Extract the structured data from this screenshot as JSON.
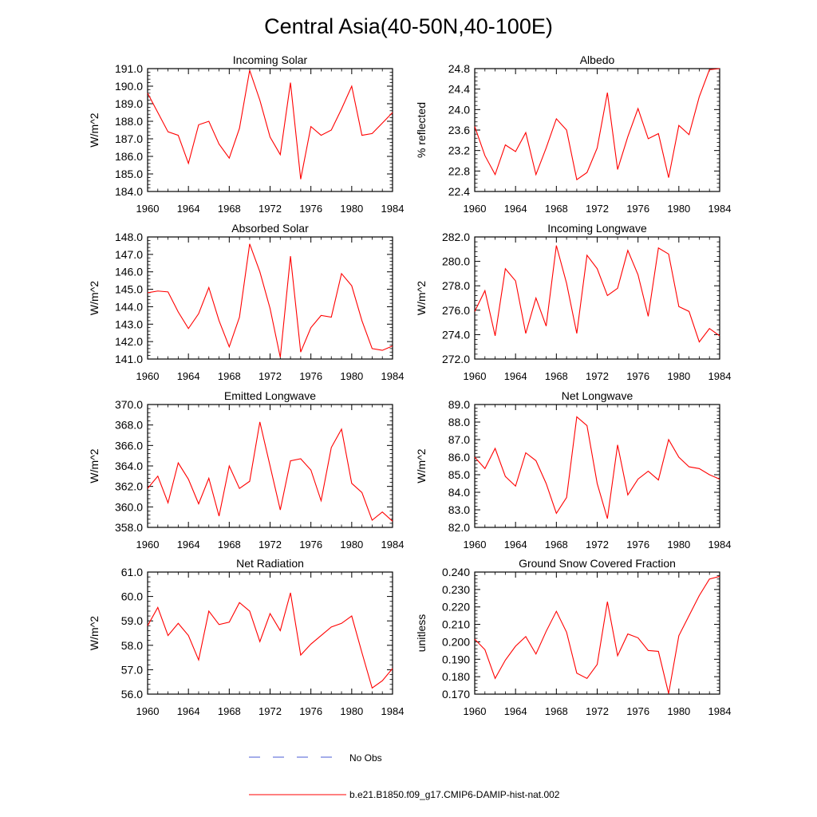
{
  "title": "Central Asia(40-50N,40-100E)",
  "colors": {
    "series": "#ff0000",
    "obs": "#4a5bd6",
    "axis": "#000000"
  },
  "legend": {
    "obs_label": "No Obs",
    "model_label": "b.e21.B1850.f09_g17.CMIP6-DAMIP-hist-nat.002"
  },
  "chart_data": [
    {
      "type": "line",
      "title": "Incoming Solar",
      "ylabel": "W/m^2",
      "xlim": [
        1960,
        1984
      ],
      "ylim": [
        184.0,
        191.0
      ],
      "xticks": [
        1960,
        1964,
        1968,
        1972,
        1976,
        1980,
        1984
      ],
      "yticks": [
        "184.0",
        "185.0",
        "186.0",
        "187.0",
        "188.0",
        "189.0",
        "190.0",
        "191.0"
      ],
      "x": [
        1960,
        1961,
        1962,
        1963,
        1964,
        1965,
        1966,
        1967,
        1968,
        1969,
        1970,
        1971,
        1972,
        1973,
        1974,
        1975,
        1976,
        1977,
        1978,
        1979,
        1980,
        1981,
        1982,
        1983,
        1984
      ],
      "series": [
        {
          "values": [
            189.6,
            188.5,
            187.4,
            187.2,
            185.6,
            187.8,
            188.0,
            186.7,
            185.9,
            187.6,
            190.9,
            189.2,
            187.1,
            186.1,
            190.2,
            184.7,
            187.7,
            187.2,
            187.5,
            188.7,
            190.0,
            187.2,
            187.3,
            187.9,
            188.5
          ]
        }
      ]
    },
    {
      "type": "line",
      "title": "Albedo",
      "ylabel": "% reflected",
      "xlim": [
        1960,
        1984
      ],
      "ylim": [
        22.4,
        24.8
      ],
      "xticks": [
        1960,
        1964,
        1968,
        1972,
        1976,
        1980,
        1984
      ],
      "yticks": [
        "22.4",
        "22.8",
        "23.2",
        "23.6",
        "24.0",
        "24.4",
        "24.8"
      ],
      "x": [
        1960,
        1961,
        1962,
        1963,
        1964,
        1965,
        1966,
        1967,
        1968,
        1969,
        1970,
        1971,
        1972,
        1973,
        1974,
        1975,
        1976,
        1977,
        1978,
        1979,
        1980,
        1981,
        1982,
        1983,
        1984
      ],
      "series": [
        {
          "values": [
            23.67,
            23.1,
            22.73,
            23.31,
            23.18,
            23.55,
            22.73,
            23.25,
            23.82,
            23.6,
            22.63,
            22.77,
            23.25,
            24.33,
            22.83,
            23.47,
            24.02,
            23.43,
            23.53,
            22.67,
            23.69,
            23.51,
            24.25,
            24.78,
            24.8
          ]
        }
      ]
    },
    {
      "type": "line",
      "title": "Absorbed Solar",
      "ylabel": "W/m^2",
      "xlim": [
        1960,
        1984
      ],
      "ylim": [
        141.0,
        148.0
      ],
      "xticks": [
        1960,
        1964,
        1968,
        1972,
        1976,
        1980,
        1984
      ],
      "yticks": [
        "141.0",
        "142.0",
        "143.0",
        "144.0",
        "145.0",
        "146.0",
        "147.0",
        "148.0"
      ],
      "x": [
        1960,
        1961,
        1962,
        1963,
        1964,
        1965,
        1966,
        1967,
        1968,
        1969,
        1970,
        1971,
        1972,
        1973,
        1974,
        1975,
        1976,
        1977,
        1978,
        1979,
        1980,
        1981,
        1982,
        1983,
        1984
      ],
      "series": [
        {
          "values": [
            144.8,
            144.9,
            144.85,
            143.7,
            142.75,
            143.6,
            145.1,
            143.2,
            141.7,
            143.4,
            147.6,
            146.0,
            143.9,
            141.1,
            146.9,
            141.4,
            142.8,
            143.5,
            143.4,
            145.9,
            145.2,
            143.2,
            141.6,
            141.5,
            141.75
          ]
        }
      ]
    },
    {
      "type": "line",
      "title": "Incoming Longwave",
      "ylabel": "W/m^2",
      "xlim": [
        1960,
        1984
      ],
      "ylim": [
        272.0,
        282.0
      ],
      "xticks": [
        1960,
        1964,
        1968,
        1972,
        1976,
        1980,
        1984
      ],
      "yticks": [
        "272.0",
        "274.0",
        "276.0",
        "278.0",
        "280.0",
        "282.0"
      ],
      "x": [
        1960,
        1961,
        1962,
        1963,
        1964,
        1965,
        1966,
        1967,
        1968,
        1969,
        1970,
        1971,
        1972,
        1973,
        1974,
        1975,
        1976,
        1977,
        1978,
        1979,
        1980,
        1981,
        1982,
        1983,
        1984
      ],
      "series": [
        {
          "values": [
            275.9,
            277.6,
            273.9,
            279.4,
            278.4,
            274.1,
            277.0,
            274.7,
            281.3,
            278.2,
            274.1,
            280.5,
            279.4,
            277.2,
            277.8,
            280.9,
            278.9,
            275.5,
            281.1,
            280.6,
            276.3,
            275.9,
            273.4,
            274.5,
            273.9
          ]
        }
      ]
    },
    {
      "type": "line",
      "title": "Emitted Longwave",
      "ylabel": "W/m^2",
      "xlim": [
        1960,
        1984
      ],
      "ylim": [
        358.0,
        370.0
      ],
      "xticks": [
        1960,
        1964,
        1968,
        1972,
        1976,
        1980,
        1984
      ],
      "yticks": [
        "358.0",
        "360.0",
        "362.0",
        "364.0",
        "366.0",
        "368.0",
        "370.0"
      ],
      "x": [
        1960,
        1961,
        1962,
        1963,
        1964,
        1965,
        1966,
        1967,
        1968,
        1969,
        1970,
        1971,
        1972,
        1973,
        1974,
        1975,
        1976,
        1977,
        1978,
        1979,
        1980,
        1981,
        1982,
        1983,
        1984
      ],
      "series": [
        {
          "values": [
            361.8,
            363.0,
            360.4,
            364.3,
            362.7,
            360.3,
            362.8,
            359.1,
            364.0,
            361.8,
            362.5,
            368.3,
            364.0,
            359.7,
            364.5,
            364.7,
            363.6,
            360.6,
            365.8,
            367.6,
            362.3,
            361.4,
            358.7,
            359.5,
            358.6
          ]
        }
      ]
    },
    {
      "type": "line",
      "title": "Net Longwave",
      "ylabel": "W/m^2",
      "xlim": [
        1960,
        1984
      ],
      "ylim": [
        82.0,
        89.0
      ],
      "xticks": [
        1960,
        1964,
        1968,
        1972,
        1976,
        1980,
        1984
      ],
      "yticks": [
        "82.0",
        "83.0",
        "84.0",
        "85.0",
        "86.0",
        "87.0",
        "88.0",
        "89.0"
      ],
      "x": [
        1960,
        1961,
        1962,
        1963,
        1964,
        1965,
        1966,
        1967,
        1968,
        1969,
        1970,
        1971,
        1972,
        1973,
        1974,
        1975,
        1976,
        1977,
        1978,
        1979,
        1980,
        1981,
        1982,
        1983,
        1984
      ],
      "series": [
        {
          "values": [
            86.0,
            85.35,
            86.5,
            84.9,
            84.35,
            86.25,
            85.8,
            84.5,
            82.8,
            83.7,
            88.3,
            87.8,
            84.5,
            82.5,
            86.7,
            83.85,
            84.75,
            85.2,
            84.7,
            87.0,
            86.0,
            85.45,
            85.35,
            85.0,
            84.75
          ]
        }
      ]
    },
    {
      "type": "line",
      "title": "Net Radiation",
      "ylabel": "W/m^2",
      "xlim": [
        1960,
        1984
      ],
      "ylim": [
        56.0,
        61.0
      ],
      "xticks": [
        1960,
        1964,
        1968,
        1972,
        1976,
        1980,
        1984
      ],
      "yticks": [
        "56.0",
        "57.0",
        "58.0",
        "59.0",
        "60.0",
        "61.0"
      ],
      "x": [
        1960,
        1961,
        1962,
        1963,
        1964,
        1965,
        1966,
        1967,
        1968,
        1969,
        1970,
        1971,
        1972,
        1973,
        1974,
        1975,
        1976,
        1977,
        1978,
        1979,
        1980,
        1981,
        1982,
        1983,
        1984
      ],
      "series": [
        {
          "values": [
            58.8,
            59.55,
            58.4,
            58.9,
            58.4,
            57.4,
            59.4,
            58.85,
            58.95,
            59.75,
            59.4,
            58.15,
            59.3,
            58.6,
            60.15,
            57.6,
            58.05,
            58.4,
            58.75,
            58.9,
            59.2,
            57.7,
            56.25,
            56.55,
            57.05
          ]
        }
      ]
    },
    {
      "type": "line",
      "title": "Ground Snow Covered Fraction",
      "ylabel": "unitless",
      "xlim": [
        1960,
        1984
      ],
      "ylim": [
        0.17,
        0.24
      ],
      "xticks": [
        1960,
        1964,
        1968,
        1972,
        1976,
        1980,
        1984
      ],
      "yticks": [
        "0.170",
        "0.180",
        "0.190",
        "0.200",
        "0.210",
        "0.220",
        "0.230",
        "0.240"
      ],
      "x": [
        1960,
        1961,
        1962,
        1963,
        1964,
        1965,
        1966,
        1967,
        1968,
        1969,
        1970,
        1971,
        1972,
        1973,
        1974,
        1975,
        1976,
        1977,
        1978,
        1979,
        1980,
        1981,
        1982,
        1983,
        1984
      ],
      "series": [
        {
          "values": [
            0.2015,
            0.1955,
            0.179,
            0.1895,
            0.1975,
            0.203,
            0.193,
            0.206,
            0.2175,
            0.2055,
            0.182,
            0.179,
            0.187,
            0.223,
            0.192,
            0.2045,
            0.2023,
            0.195,
            0.1945,
            0.1703,
            0.2035,
            0.215,
            0.2265,
            0.236,
            0.2375
          ]
        }
      ]
    }
  ]
}
